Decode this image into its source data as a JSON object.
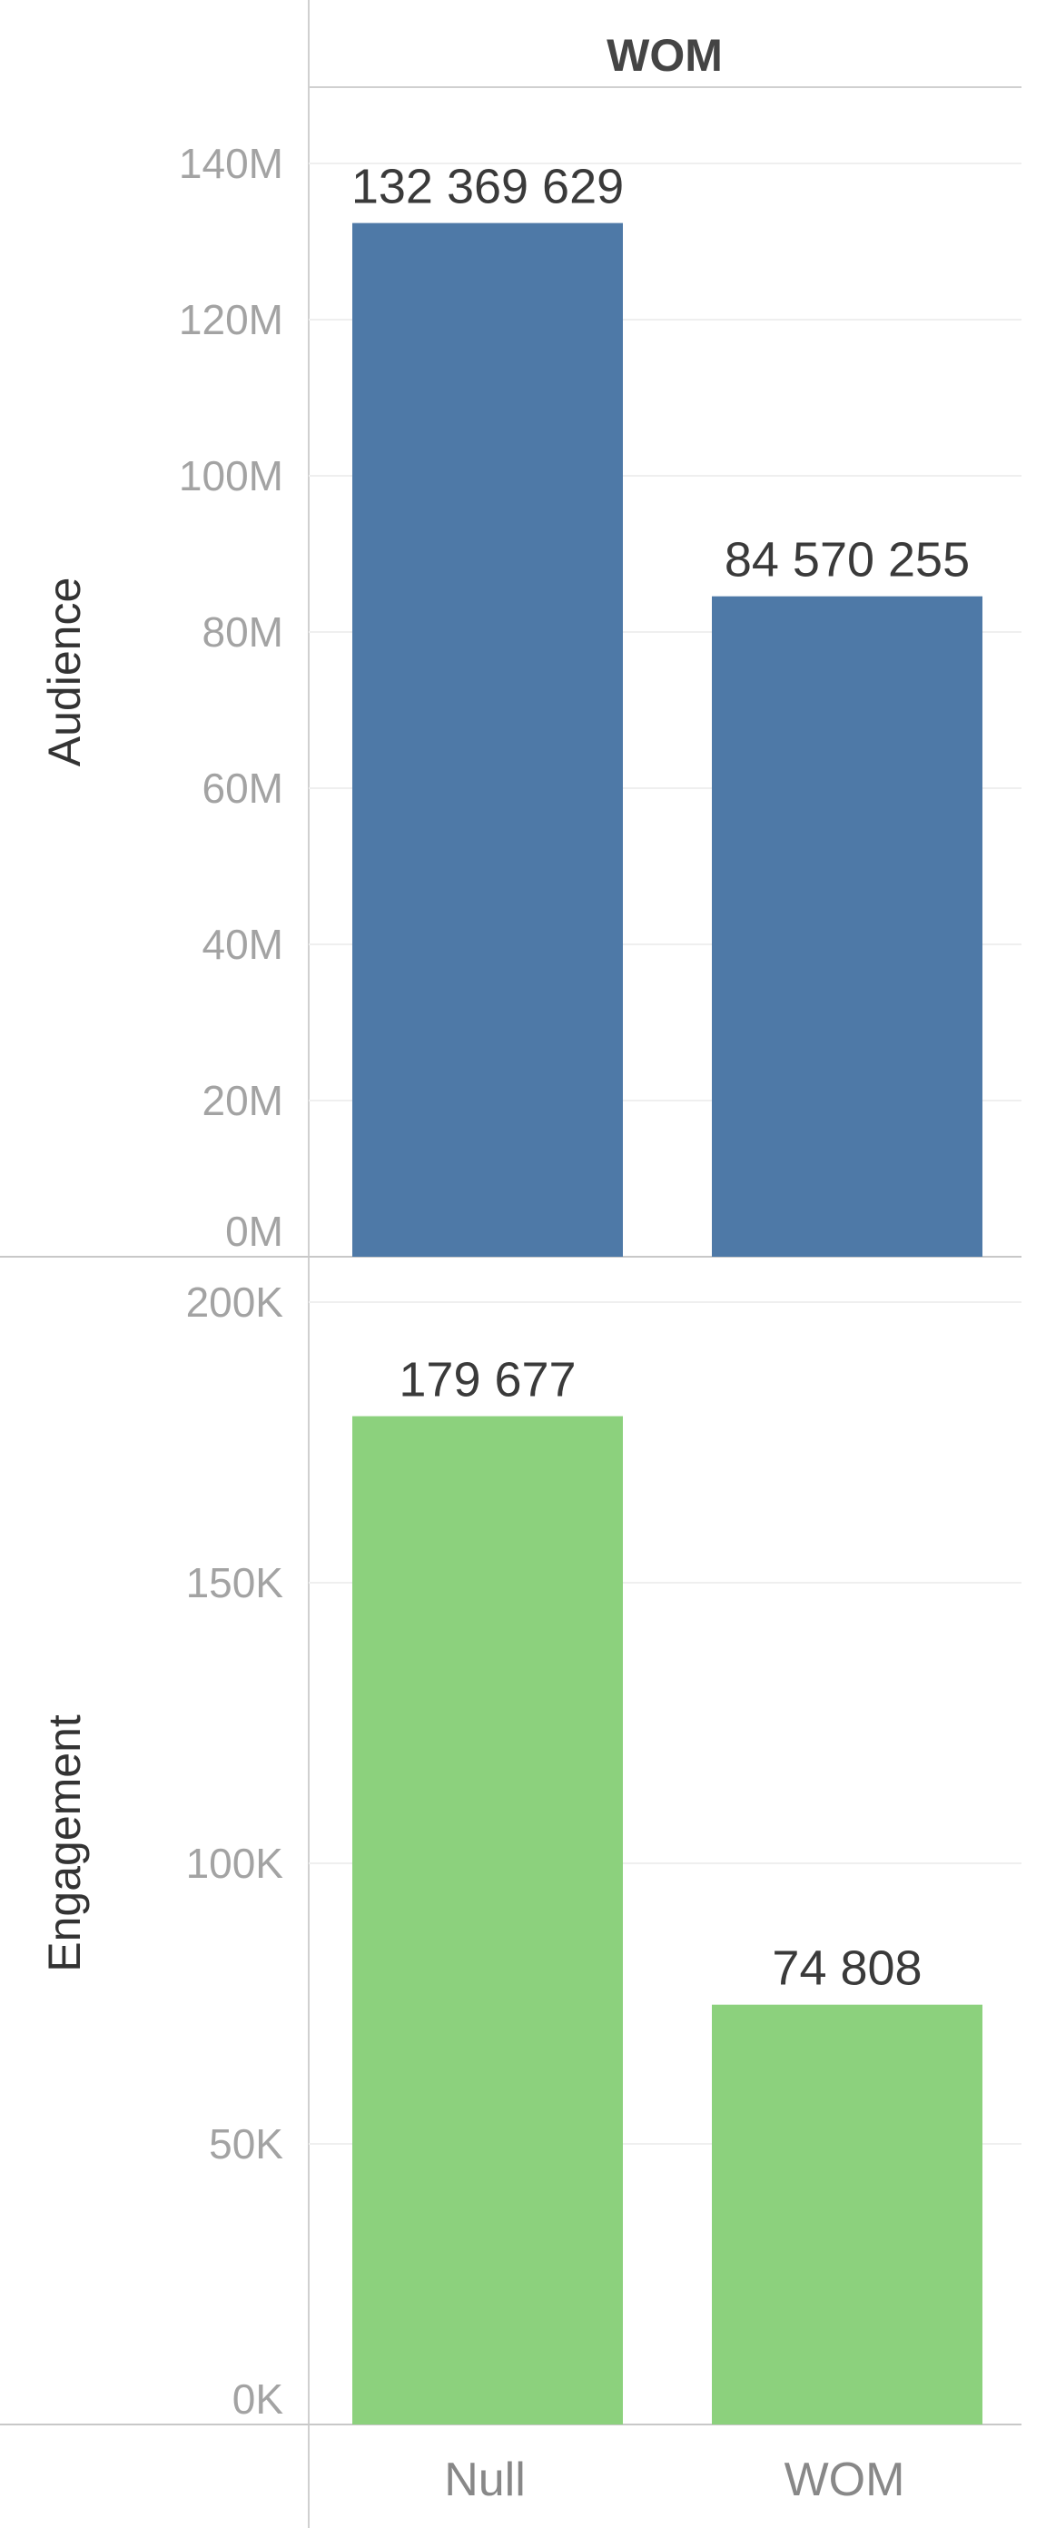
{
  "chart_data": {
    "type": "bar",
    "header": "WOM",
    "categories": [
      "Null",
      "WOM"
    ],
    "panels": [
      {
        "ylabel": "Audience",
        "color": "#4e79a7",
        "ylim": [
          0,
          140000000
        ],
        "ticks": [
          {
            "value": 0,
            "label": "0M"
          },
          {
            "value": 20000000,
            "label": "20M"
          },
          {
            "value": 40000000,
            "label": "40M"
          },
          {
            "value": 60000000,
            "label": "60M"
          },
          {
            "value": 80000000,
            "label": "80M"
          },
          {
            "value": 100000000,
            "label": "100M"
          },
          {
            "value": 120000000,
            "label": "120M"
          },
          {
            "value": 140000000,
            "label": "140M"
          }
        ],
        "values": [
          132369629,
          84570255
        ],
        "value_labels": [
          "132 369 629",
          "84 570 255"
        ]
      },
      {
        "ylabel": "Engagement",
        "color": "#8cd17d",
        "ylim": [
          0,
          200000
        ],
        "ticks": [
          {
            "value": 0,
            "label": "0K"
          },
          {
            "value": 50000,
            "label": "50K"
          },
          {
            "value": 100000,
            "label": "100K"
          },
          {
            "value": 150000,
            "label": "150K"
          },
          {
            "value": 200000,
            "label": "200K"
          }
        ],
        "values": [
          179677,
          74808
        ],
        "value_labels": [
          "179 677",
          "74 808"
        ]
      }
    ]
  }
}
